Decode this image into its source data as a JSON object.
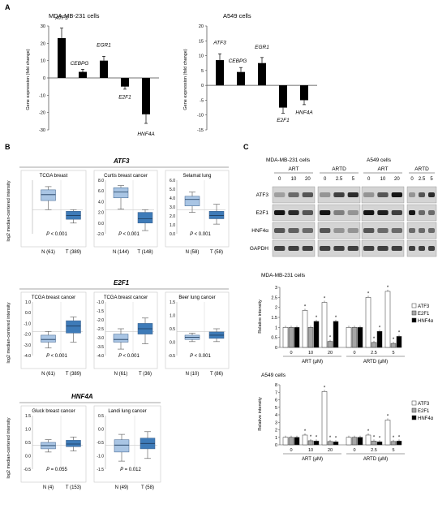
{
  "panel_letters": {
    "a": "A",
    "b": "B",
    "c": "C"
  },
  "panel_a": {
    "ylabel": "Gene expression (fold change)",
    "ticks": [
      "30",
      "20",
      "10",
      "0",
      "-10",
      "-20",
      "-30"
    ],
    "ticks_right": [
      "20",
      "15",
      "10",
      "5",
      "0",
      "-5",
      "-10",
      "-15"
    ],
    "charts": [
      {
        "title": "MDA-MB-231 cells",
        "ylim": [
          -30,
          30
        ],
        "bars": [
          {
            "label": "ATF3",
            "value": 23
          },
          {
            "label": "CEBPG",
            "value": 3.5
          },
          {
            "label": "EGR1",
            "value": 10
          },
          {
            "label": "E2F1",
            "value": -5
          },
          {
            "label": "HNF4A",
            "value": -21
          }
        ]
      },
      {
        "title": "A549 cells",
        "ylim": [
          -15,
          20
        ],
        "bars": [
          {
            "label": "ATF3",
            "value": 8.5
          },
          {
            "label": "CEBPG",
            "value": 4.5
          },
          {
            "label": "EGR1",
            "value": 7.5
          },
          {
            "label": "E2F1",
            "value": -7.5
          },
          {
            "label": "HNF4A",
            "value": -5
          }
        ]
      }
    ]
  },
  "panel_b": {
    "ylabel": "log2 median-centered intensity",
    "sections": [
      {
        "gene": "ATF3",
        "plots": [
          {
            "title": "TCGA breast",
            "n": "N (61)",
            "t": "T (389)",
            "p_pre": "P",
            "p": "< 0.001",
            "ticks": []
          },
          {
            "title": "Curtis breast cancer",
            "n": "N (144)",
            "t": "T (148)",
            "p_pre": "P",
            "p": "< 0.001",
            "ticks": [
              "8.0",
              "6.0",
              "4.0",
              "2.0",
              "0.0",
              "-2.0"
            ]
          },
          {
            "title": "Selamat lung",
            "n": "N (58)",
            "t": "T (58)",
            "p_pre": "P",
            "p": "< 0.001",
            "ticks": [
              "6.0",
              "5.0",
              "4.0",
              "3.0",
              "2.0",
              "1.0",
              "0.0"
            ]
          }
        ]
      },
      {
        "gene": "E2F1",
        "plots": [
          {
            "title": "TCGA breast cancer",
            "n": "N (61)",
            "t": "T (389)",
            "p_pre": "P",
            "p": "< 0.001",
            "ticks": [
              "1.0",
              "0.0",
              "-1.0",
              "-2.0",
              "-3.0",
              "-4.0"
            ]
          },
          {
            "title": "TCGA breast cancer",
            "n": "N (61)",
            "t": "T (36)",
            "p_pre": "P",
            "p": "< 0.001",
            "ticks": [
              "-1.0",
              "-1.5",
              "-2.0",
              "-2.5",
              "-3.0",
              "-3.5",
              "-4.0"
            ]
          },
          {
            "title": "Beer lung cancer",
            "n": "N (10)",
            "t": "T (86)",
            "p_pre": "P",
            "p": "< 0.001",
            "ticks": [
              "1.5",
              "1.0",
              "0.5",
              "0.0",
              "-0.5"
            ]
          }
        ]
      },
      {
        "gene": "HNF4A",
        "plots": [
          {
            "title": "Gluck breast cancer",
            "n": "N (4)",
            "t": "T (153)",
            "p_pre": "P",
            "p": "= 0.055",
            "ticks": [
              "1.5",
              "1.0",
              "0.5",
              "0.0",
              "-0.5"
            ]
          },
          {
            "title": "Landi lung cancer",
            "n": "N (49)",
            "t": "T (58)",
            "p_pre": "P",
            "p": "= 0.012",
            "ticks": [
              "0.5",
              "0.0",
              "-0.5",
              "-1.0",
              "-1.5"
            ]
          }
        ]
      }
    ]
  },
  "panel_c": {
    "blot": {
      "cell_lines": [
        "MDA-MB-231 cells",
        "A549 cells"
      ],
      "groups": [
        "ART",
        "ARTD",
        "ART",
        "ARTD"
      ],
      "doses": [
        [
          "0",
          "10",
          "20"
        ],
        [
          "0",
          "2.5",
          "5"
        ],
        [
          "0",
          "10",
          "20"
        ],
        [
          "0",
          "2.5",
          "5"
        ]
      ],
      "rows": [
        "ATF3",
        "E2F1",
        "HNF4α",
        "GAPDH"
      ]
    },
    "legend": [
      "ATF3",
      "E2F1",
      "HNF4α"
    ],
    "colors": {
      "ATF3": "#ffffff",
      "E2F1": "#a6a6a6",
      "HNF4α": "#000000"
    },
    "ylabel": "Relative intensity",
    "x_doses": [
      "0",
      "10",
      "20",
      "0",
      "2.5",
      "5"
    ],
    "x_groups": [
      "ART (μM)",
      "ARTD (μM)"
    ],
    "sig_mark": "*",
    "charts": [
      {
        "title": "MDA-MB-231 cells",
        "ylim": [
          0,
          3
        ],
        "ticks": [
          "3",
          "2.5",
          "2",
          "1.5",
          "1",
          "0.5",
          "0"
        ],
        "values": [
          [
            1,
            1,
            1
          ],
          [
            1.85,
            1,
            1.3
          ],
          [
            2.25,
            0.3,
            1.3
          ],
          [
            1,
            1,
            1
          ],
          [
            2.5,
            0.25,
            0.8
          ],
          [
            2.8,
            0.2,
            0.55
          ]
        ]
      },
      {
        "title": "A549 cells",
        "ylim": [
          0,
          8
        ],
        "ticks": [
          "8",
          "7",
          "6",
          "5",
          "4",
          "3",
          "2",
          "1",
          "0"
        ],
        "values": [
          [
            1,
            1,
            1
          ],
          [
            1.3,
            0.55,
            0.5
          ],
          [
            7.1,
            0.45,
            0.4
          ],
          [
            1,
            1,
            1
          ],
          [
            1.3,
            0.5,
            0.4
          ],
          [
            3.3,
            0.45,
            0.5
          ]
        ]
      }
    ]
  }
}
